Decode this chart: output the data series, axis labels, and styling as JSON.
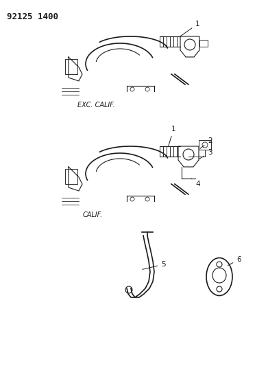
{
  "title_number": "92125 1400",
  "title_fontsize": 9,
  "bg_color": "#ffffff",
  "line_color": "#1a1a1a",
  "label_color": "#1a1a1a",
  "label_fontsize": 7.5,
  "exc_calif_label": "EXC. CALIF.",
  "calif_label": "CALIF.",
  "part_numbers": [
    "1",
    "2",
    "3",
    "4",
    "5",
    "6"
  ],
  "figsize": [
    3.91,
    5.33
  ],
  "dpi": 100
}
